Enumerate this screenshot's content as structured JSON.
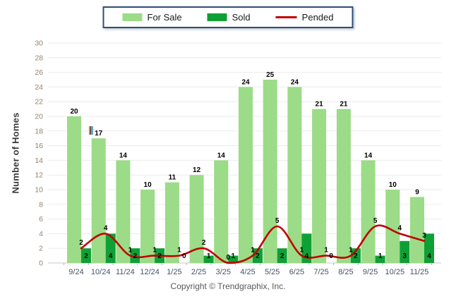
{
  "legend": {
    "items": [
      {
        "label": "For Sale",
        "color": "#9CDB87",
        "type": "swatch"
      },
      {
        "label": "Sold",
        "color": "#0FA035",
        "type": "swatch"
      },
      {
        "label": "Pended",
        "color": "#C00000",
        "type": "line"
      }
    ]
  },
  "footer": {
    "copyright": "Copyright © Trendgraphix, Inc."
  },
  "chart_data": {
    "type": "bar",
    "subtype": "grouped-bars-with-line",
    "categories": [
      "9/24",
      "10/24",
      "11/24",
      "12/24",
      "1/25",
      "2/25",
      "3/25",
      "4/25",
      "5/25",
      "6/25",
      "7/25",
      "8/25",
      "9/25",
      "10/25",
      "11/25"
    ],
    "series": [
      {
        "name": "For Sale",
        "type": "bar",
        "color": "#9CDB87",
        "values": [
          20,
          17,
          14,
          10,
          11,
          12,
          14,
          24,
          25,
          24,
          21,
          21,
          14,
          10,
          9
        ]
      },
      {
        "name": "Sold",
        "type": "bar",
        "color": "#0FA035",
        "values": [
          2,
          4,
          2,
          2,
          0,
          1,
          1,
          2,
          2,
          4,
          0,
          2,
          1,
          3,
          4
        ]
      },
      {
        "name": "Pended",
        "type": "line",
        "color": "#C00000",
        "values": [
          2,
          4,
          1,
          1,
          1,
          2,
          0,
          1,
          5,
          1,
          1,
          1,
          5,
          4,
          3
        ]
      }
    ],
    "title": "",
    "xlabel": "",
    "ylabel": "Number of Homes",
    "ylim": [
      0,
      30
    ],
    "ytick_step": 2,
    "grid": true,
    "legend_position": "top-center",
    "colors": {
      "gridline": "#EBEBEB",
      "axis_line": "#C8C8C8",
      "tick_mark": "#B4B4B4",
      "y_tick_text": "#96826E",
      "x_tick_text": "#44546A",
      "value_label": "#000000"
    }
  }
}
